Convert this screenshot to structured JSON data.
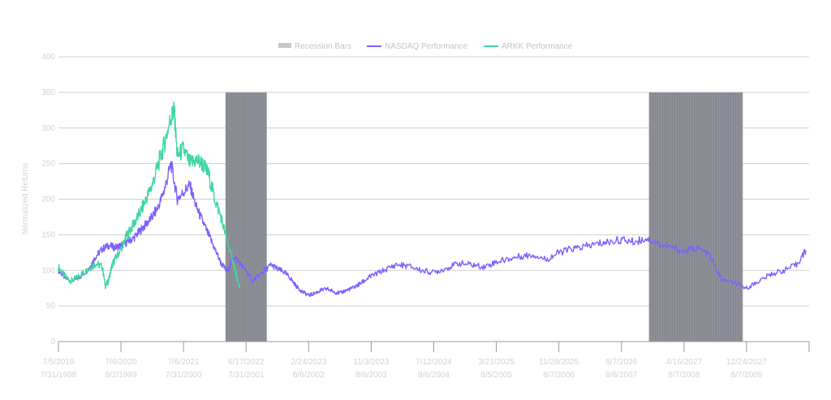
{
  "chart_data": {
    "type": "line",
    "ylabel": "Normalized Returns",
    "ylim": [
      0,
      400
    ],
    "yticks": [
      0,
      50,
      100,
      150,
      200,
      250,
      300,
      350,
      400
    ],
    "x_tick_labels_top": [
      "7/5/2019",
      "7/6/2020",
      "7/6/2021",
      "6/17/2022",
      "2/24/2023",
      "11/3/2023",
      "7/12/2024",
      "3/21/2025",
      "11/28/2025",
      "8/7/2026",
      "4/16/2027",
      "12/24/2027"
    ],
    "x_tick_labels_bottom": [
      "7/31/1998",
      "8/2/1999",
      "7/31/2000",
      "7/31/2001",
      "8/6/2002",
      "8/6/2003",
      "8/6/2004",
      "8/5/2005",
      "8/7/2006",
      "8/8/2007",
      "8/7/2008",
      "8/7/2009"
    ],
    "xlim": [
      0,
      12
    ],
    "legend": {
      "placement": "top-center",
      "items": [
        {
          "label": "Recession Bars",
          "color": "#8e9099",
          "kind": "bar"
        },
        {
          "label": "NASDAQ Performance",
          "color": "#7b61ff",
          "kind": "line"
        },
        {
          "label": "ARKK Performance",
          "color": "#3fd6a0",
          "kind": "line"
        }
      ]
    },
    "recession_bars": [
      {
        "x_start": 2.67,
        "x_end": 3.33,
        "y_top": 350
      },
      {
        "x_start": 9.44,
        "x_end": 10.94,
        "y_top": 350
      }
    ],
    "series": [
      {
        "name": "NASDAQ Performance",
        "color": "#7b61ff",
        "x": [
          0,
          0.1,
          0.2,
          0.3,
          0.4,
          0.5,
          0.6,
          0.7,
          0.8,
          0.9,
          1.0,
          1.1,
          1.2,
          1.3,
          1.4,
          1.5,
          1.6,
          1.7,
          1.8,
          1.9,
          2.0,
          2.1,
          2.2,
          2.3,
          2.4,
          2.5,
          2.6,
          2.7,
          2.8,
          2.9,
          3.0,
          3.1,
          3.2,
          3.3,
          3.4,
          3.5,
          3.6,
          3.7,
          3.8,
          3.9,
          4.0,
          4.1,
          4.2,
          4.3,
          4.4,
          4.5,
          4.6,
          4.7,
          4.8,
          4.9,
          5.0,
          5.2,
          5.4,
          5.6,
          5.8,
          6.0,
          6.2,
          6.4,
          6.6,
          6.8,
          7.0,
          7.2,
          7.4,
          7.6,
          7.8,
          8.0,
          8.2,
          8.4,
          8.6,
          8.8,
          9.0,
          9.2,
          9.4,
          9.6,
          9.8,
          10.0,
          10.2,
          10.4,
          10.6,
          10.8,
          11.0,
          11.2,
          11.4,
          11.6,
          11.8,
          11.95
        ],
        "values": [
          100,
          90,
          85,
          88,
          95,
          105,
          120,
          130,
          135,
          132,
          135,
          140,
          145,
          155,
          165,
          175,
          190,
          215,
          250,
          200,
          210,
          220,
          190,
          170,
          150,
          130,
          110,
          98,
          120,
          110,
          100,
          85,
          92,
          100,
          108,
          102,
          98,
          90,
          78,
          70,
          65,
          68,
          72,
          74,
          70,
          68,
          72,
          75,
          80,
          86,
          92,
          100,
          108,
          106,
          100,
          97,
          103,
          110,
          108,
          105,
          112,
          116,
          120,
          122,
          115,
          125,
          130,
          133,
          137,
          140,
          143,
          140,
          145,
          137,
          132,
          126,
          132,
          122,
          87,
          82,
          75,
          85,
          95,
          100,
          108,
          128
        ]
      },
      {
        "name": "ARKK Performance",
        "color": "#3fd6a0",
        "x": [
          0,
          0.1,
          0.2,
          0.3,
          0.4,
          0.5,
          0.6,
          0.7,
          0.75,
          0.8,
          0.85,
          0.9,
          1.0,
          1.1,
          1.2,
          1.3,
          1.4,
          1.5,
          1.6,
          1.7,
          1.8,
          1.85,
          1.9,
          2.0,
          2.1,
          2.2,
          2.3,
          2.4,
          2.5,
          2.6,
          2.7,
          2.8,
          2.85,
          2.9
        ],
        "values": [
          105,
          92,
          85,
          90,
          97,
          103,
          110,
          105,
          78,
          85,
          105,
          115,
          130,
          150,
          165,
          180,
          200,
          220,
          250,
          280,
          315,
          325,
          260,
          270,
          250,
          255,
          250,
          235,
          200,
          175,
          140,
          110,
          90,
          75
        ]
      }
    ]
  }
}
